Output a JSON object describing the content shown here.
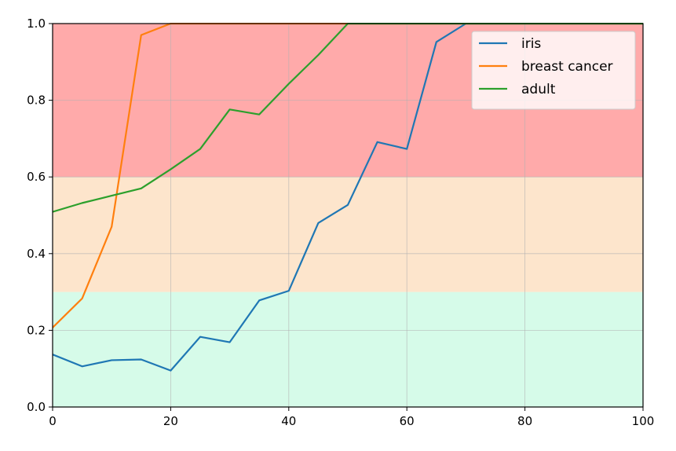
{
  "chart_data": {
    "type": "line",
    "title": "",
    "xlabel": "",
    "ylabel": "",
    "xlim": [
      0,
      100
    ],
    "ylim": [
      0.0,
      1.0
    ],
    "x_ticks": [
      "0",
      "20",
      "40",
      "60",
      "80",
      "100"
    ],
    "y_ticks": [
      "0.0",
      "0.2",
      "0.4",
      "0.6",
      "0.8",
      "1.0"
    ],
    "grid": true,
    "legend_position": "top-right",
    "bands": [
      {
        "from": 0.0,
        "to": 0.3,
        "color": "#d6fbe9"
      },
      {
        "from": 0.3,
        "to": 0.6,
        "color": "#fde5cc"
      },
      {
        "from": 0.6,
        "to": 1.0,
        "color": "#ffaaaa"
      }
    ],
    "series": [
      {
        "name": "iris",
        "color": "#1f77b4",
        "points": [
          [
            0,
            0.137
          ],
          [
            5,
            0.106
          ],
          [
            10,
            0.122
          ],
          [
            15,
            0.124
          ],
          [
            20,
            0.095
          ],
          [
            25,
            0.183
          ],
          [
            30,
            0.169
          ],
          [
            35,
            0.278
          ],
          [
            40,
            0.303
          ],
          [
            45,
            0.48
          ],
          [
            50,
            0.527
          ],
          [
            55,
            0.691
          ],
          [
            60,
            0.673
          ],
          [
            65,
            0.952
          ],
          [
            70,
            1.0
          ],
          [
            75,
            1.0
          ],
          [
            80,
            1.0
          ],
          [
            85,
            1.0
          ],
          [
            90,
            1.0
          ],
          [
            95,
            1.0
          ],
          [
            100,
            1.0
          ]
        ]
      },
      {
        "name": "breast cancer",
        "color": "#ff7f0e",
        "points": [
          [
            0,
            0.207
          ],
          [
            5,
            0.283
          ],
          [
            10,
            0.47
          ],
          [
            15,
            0.97
          ],
          [
            20,
            1.0
          ],
          [
            25,
            1.0
          ],
          [
            30,
            1.0
          ],
          [
            35,
            1.0
          ],
          [
            40,
            1.0
          ],
          [
            45,
            1.0
          ],
          [
            50,
            1.0
          ],
          [
            55,
            1.0
          ],
          [
            60,
            1.0
          ],
          [
            65,
            1.0
          ],
          [
            70,
            1.0
          ],
          [
            75,
            1.0
          ],
          [
            80,
            1.0
          ],
          [
            85,
            1.0
          ],
          [
            90,
            1.0
          ],
          [
            95,
            1.0
          ],
          [
            100,
            1.0
          ]
        ]
      },
      {
        "name": "adult",
        "color": "#2ca02c",
        "points": [
          [
            0,
            0.509
          ],
          [
            5,
            0.532
          ],
          [
            10,
            0.551
          ],
          [
            15,
            0.57
          ],
          [
            20,
            0.62
          ],
          [
            25,
            0.673
          ],
          [
            30,
            0.776
          ],
          [
            35,
            0.763
          ],
          [
            40,
            0.843
          ],
          [
            45,
            0.918
          ],
          [
            50,
            1.0
          ],
          [
            55,
            1.0
          ],
          [
            60,
            1.0
          ],
          [
            65,
            1.0
          ],
          [
            70,
            1.0
          ],
          [
            75,
            1.0
          ],
          [
            80,
            1.0
          ],
          [
            85,
            1.0
          ],
          [
            90,
            1.0
          ],
          [
            95,
            1.0
          ],
          [
            100,
            1.0
          ]
        ]
      }
    ]
  }
}
